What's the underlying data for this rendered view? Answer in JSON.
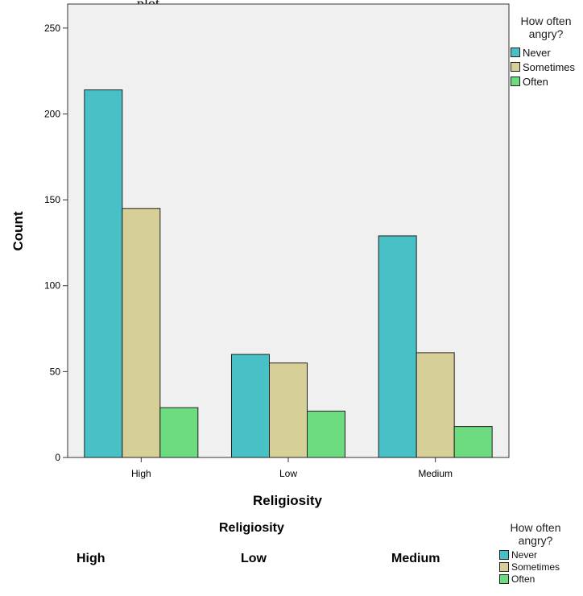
{
  "caption_top": "plot",
  "chart_data": {
    "type": "bar",
    "categories": [
      "High",
      "Low",
      "Medium"
    ],
    "series": [
      {
        "name": "Never",
        "values": [
          214,
          60,
          129
        ],
        "color": "#47c1c6"
      },
      {
        "name": "Sometimes",
        "values": [
          145,
          55,
          61
        ],
        "color": "#d6cf98"
      },
      {
        "name": "Often",
        "values": [
          29,
          27,
          18
        ],
        "color": "#6ddb7f"
      }
    ],
    "xlabel": "Religiosity",
    "ylabel": "Count",
    "ylim": [
      0,
      264
    ],
    "yticks": [
      0,
      50,
      100,
      150,
      200,
      250
    ],
    "legend_title": "How often angry?",
    "legend_placement": "right",
    "grid": false,
    "background": "#f0f0f0"
  },
  "lower_panel": {
    "title": "Religiosity",
    "labels": [
      "High",
      "Low",
      "Medium"
    ],
    "legend_title": "How often angry?",
    "legend_items": [
      "Never",
      "Sometimes",
      "Often"
    ]
  }
}
